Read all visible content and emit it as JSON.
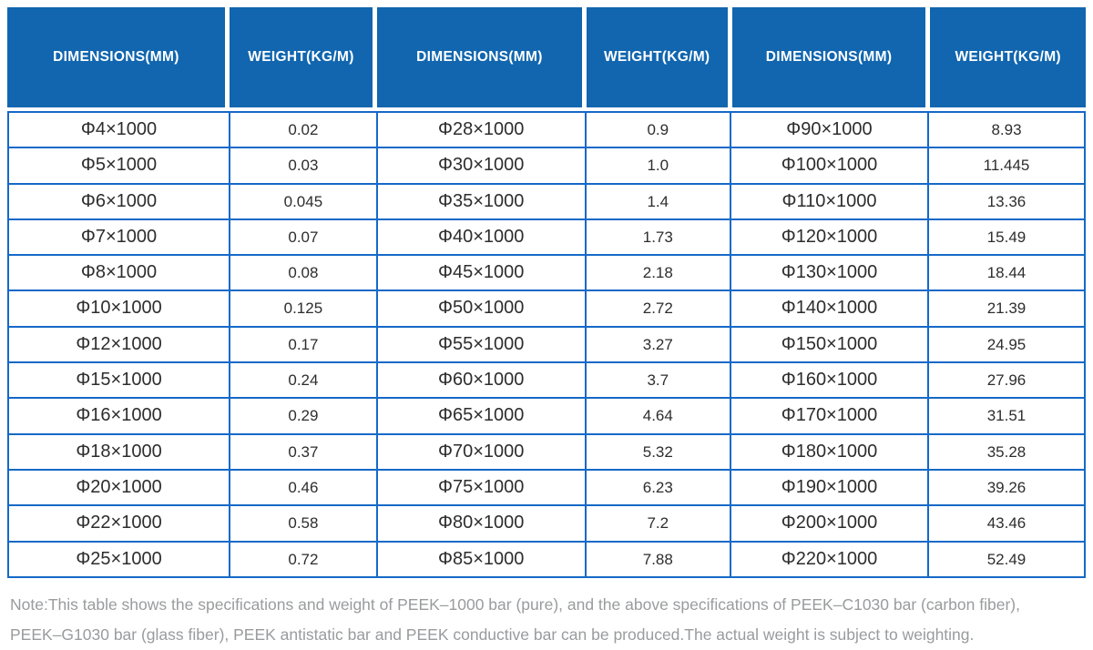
{
  "colors": {
    "header_bg": "#1166af",
    "border": "#1569c8",
    "cell_text": "#2d2d2d",
    "note_text": "#999b9d"
  },
  "table": {
    "headers": [
      "DIMENSIONS(MM)",
      "WEIGHT(KG/M)",
      "DIMENSIONS(MM)",
      "WEIGHT(KG/M)",
      "DIMENSIONS(MM)",
      "WEIGHT(KG/M)"
    ],
    "rows": [
      [
        "Φ4×1000",
        "0.02",
        "Φ28×1000",
        "0.9",
        "Φ90×1000",
        "8.93"
      ],
      [
        "Φ5×1000",
        "0.03",
        "Φ30×1000",
        "1.0",
        "Φ100×1000",
        "11.445"
      ],
      [
        "Φ6×1000",
        "0.045",
        "Φ35×1000",
        "1.4",
        "Φ110×1000",
        "13.36"
      ],
      [
        "Φ7×1000",
        "0.07",
        "Φ40×1000",
        "1.73",
        "Φ120×1000",
        "15.49"
      ],
      [
        "Φ8×1000",
        "0.08",
        "Φ45×1000",
        "2.18",
        "Φ130×1000",
        "18.44"
      ],
      [
        "Φ10×1000",
        "0.125",
        "Φ50×1000",
        "2.72",
        "Φ140×1000",
        "21.39"
      ],
      [
        "Φ12×1000",
        "0.17",
        "Φ55×1000",
        "3.27",
        "Φ150×1000",
        "24.95"
      ],
      [
        "Φ15×1000",
        "0.24",
        "Φ60×1000",
        "3.7",
        "Φ160×1000",
        "27.96"
      ],
      [
        "Φ16×1000",
        "0.29",
        "Φ65×1000",
        "4.64",
        "Φ170×1000",
        "31.51"
      ],
      [
        "Φ18×1000",
        "0.37",
        "Φ70×1000",
        "5.32",
        "Φ180×1000",
        "35.28"
      ],
      [
        "Φ20×1000",
        "0.46",
        "Φ75×1000",
        "6.23",
        "Φ190×1000",
        "39.26"
      ],
      [
        "Φ22×1000",
        "0.58",
        "Φ80×1000",
        "7.2",
        "Φ200×1000",
        "43.46"
      ],
      [
        "Φ25×1000",
        "0.72",
        "Φ85×1000",
        "7.88",
        "Φ220×1000",
        "52.49"
      ]
    ]
  },
  "note": {
    "line1": "Note:This table shows the specifications and weight of PEEK–1000 bar (pure), and the above specifications of PEEK–C1030 bar (carbon fiber),",
    "line2": "PEEK–G1030 bar (glass fiber), PEEK antistatic bar and PEEK conductive bar can be produced.The actual weight is subject to weighting."
  },
  "chart_data": {
    "type": "table",
    "title": "PEEK-1000 bar (pure) specifications and weight",
    "columns": [
      "DIMENSIONS(MM)",
      "WEIGHT(KG/M)",
      "DIMENSIONS(MM)",
      "WEIGHT(KG/M)",
      "DIMENSIONS(MM)",
      "WEIGHT(KG/M)"
    ],
    "rows": [
      [
        "Φ4×1000",
        0.02,
        "Φ28×1000",
        0.9,
        "Φ90×1000",
        8.93
      ],
      [
        "Φ5×1000",
        0.03,
        "Φ30×1000",
        1.0,
        "Φ100×1000",
        11.445
      ],
      [
        "Φ6×1000",
        0.045,
        "Φ35×1000",
        1.4,
        "Φ110×1000",
        13.36
      ],
      [
        "Φ7×1000",
        0.07,
        "Φ40×1000",
        1.73,
        "Φ120×1000",
        15.49
      ],
      [
        "Φ8×1000",
        0.08,
        "Φ45×1000",
        2.18,
        "Φ130×1000",
        18.44
      ],
      [
        "Φ10×1000",
        0.125,
        "Φ50×1000",
        2.72,
        "Φ140×1000",
        21.39
      ],
      [
        "Φ12×1000",
        0.17,
        "Φ55×1000",
        3.27,
        "Φ150×1000",
        24.95
      ],
      [
        "Φ15×1000",
        0.24,
        "Φ60×1000",
        3.7,
        "Φ160×1000",
        27.96
      ],
      [
        "Φ16×1000",
        0.29,
        "Φ65×1000",
        4.64,
        "Φ170×1000",
        31.51
      ],
      [
        "Φ18×1000",
        0.37,
        "Φ70×1000",
        5.32,
        "Φ180×1000",
        35.28
      ],
      [
        "Φ20×1000",
        0.46,
        "Φ75×1000",
        6.23,
        "Φ190×1000",
        39.26
      ],
      [
        "Φ22×1000",
        0.58,
        "Φ80×1000",
        7.2,
        "Φ200×1000",
        43.46
      ],
      [
        "Φ25×1000",
        0.72,
        "Φ85×1000",
        7.88,
        "Φ220×1000",
        52.49
      ]
    ]
  }
}
